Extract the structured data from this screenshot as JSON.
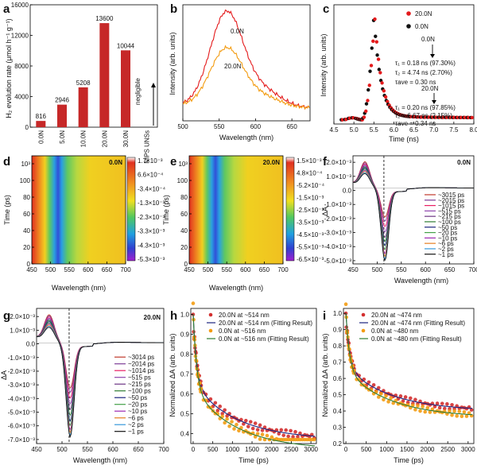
{
  "chart_data": [
    {
      "panel": "a",
      "type": "bar",
      "ylabel": "H₂ evolution rate (μmol h⁻¹ g⁻¹)",
      "categories": [
        "0.0N",
        "5.0N",
        "10.0N",
        "20.0N",
        "30.0N",
        "NIPS UNSs"
      ],
      "values": [
        816,
        2946,
        5208,
        13600,
        10044,
        0
      ],
      "value_labels": [
        "816",
        "2946",
        "5208",
        "13600",
        "10044",
        ""
      ],
      "annotation": "negligible",
      "yticks": [
        "0",
        "4000",
        "8000",
        "12000",
        "16000"
      ],
      "ylim": [
        0,
        16000
      ]
    },
    {
      "panel": "b",
      "type": "line",
      "xlabel": "Wavelength (nm)",
      "ylabel": "Intensity (arb. units)",
      "xticks": [
        "500",
        "550",
        "600",
        "650"
      ],
      "xlim": [
        500,
        675
      ],
      "series": [
        {
          "name": "0.0N",
          "color": "#e41a1c",
          "peak": 1.0
        },
        {
          "name": "20.0N",
          "color": "#f39c12",
          "peak": 0.62
        }
      ]
    },
    {
      "panel": "c",
      "type": "scatter",
      "xlabel": "Time (ns)",
      "ylabel": "Intensity (arb. units)",
      "xticks": [
        "4.5",
        "5.0",
        "5.5",
        "6.0",
        "6.5",
        "7.0",
        "7.5",
        "8.0"
      ],
      "xlim": [
        4.5,
        8.0
      ],
      "legend": [
        "20.0N",
        "0.0N"
      ],
      "legend_colors": [
        "#e41a1c",
        "#111111"
      ],
      "annot_a": {
        "title": "0.0N",
        "lines": [
          "τ₁ = 0.18 ns (97.30%)",
          "τ₂ = 4.74 ns (2.70%)",
          "τave = 0.30 ns"
        ]
      },
      "annot_b": {
        "title": "20.0N",
        "lines": [
          "τ₁ = 0.20 ns (97.85%)",
          "τ₂ = 6.67 ns (2.15%)",
          "τave = 0.34 ns"
        ]
      }
    },
    {
      "panel": "d",
      "type": "heatmap",
      "label": "0.0N",
      "xlabel": "Wavelength (nm)",
      "ylabel": "Time (ps)",
      "xticks": [
        "450",
        "500",
        "550",
        "600",
        "650",
        "700"
      ],
      "yticks": [
        "0",
        "20",
        "40",
        "60",
        "80",
        "100",
        "10³"
      ],
      "colorbar": [
        "1.7×10⁻³",
        "6.6×10⁻⁴",
        "-3.4×10⁻⁴",
        "-1.3×10⁻³",
        "-2.3×10⁻³",
        "-3.3×10⁻³",
        "-4.3×10⁻³",
        "-5.3×10⁻³"
      ]
    },
    {
      "panel": "e",
      "type": "heatmap",
      "label": "20.0N",
      "xlabel": "Wavelength (nm)",
      "ylabel": "Time (ps)",
      "xticks": [
        "450",
        "500",
        "550",
        "600",
        "650",
        "700"
      ],
      "yticks": [
        "0",
        "20",
        "40",
        "60",
        "80",
        "100",
        "10³"
      ],
      "colorbar": [
        "1.5×10⁻³",
        "4.8×10⁻⁴",
        "-5.2×10⁻⁴",
        "-1.5×10⁻³",
        "-2.5×10⁻³",
        "-3.5×10⁻³",
        "-4.5×10⁻³",
        "-5.5×10⁻³",
        "-6.5×10⁻³"
      ]
    },
    {
      "panel": "f",
      "type": "line",
      "label": "0.0N",
      "xlabel": "Wavelength (nm)",
      "ylabel": "ΔA",
      "xticks": [
        "450",
        "500",
        "550",
        "600",
        "650",
        "700"
      ],
      "yticks": [
        "2.0×10⁻³",
        "1.0×10⁻³",
        "0.0",
        "-1.0×10⁻³",
        "-2.0×10⁻³",
        "-3.0×10⁻³",
        "-4.0×10⁻³",
        "-5.0×10⁻³"
      ],
      "ylim": [
        -5.6,
        2.4
      ],
      "legend": [
        "~3015 ps",
        "~2015 ps",
        "~1015 ps",
        "~515 ps",
        "~215 ps",
        "~100 ps",
        "~50 ps",
        "~20 ps",
        "~10 ps",
        "~6 ps",
        "~2 ps",
        "~1 ps"
      ],
      "depths": [
        -2.0,
        -2.3,
        -2.7,
        -3.1,
        -3.5,
        -3.8,
        -4.1,
        -4.4,
        -4.7,
        -4.9,
        -5.1,
        -5.2
      ]
    },
    {
      "panel": "g",
      "type": "line",
      "label": "20.0N",
      "xlabel": "Wavelength (nm)",
      "ylabel": "ΔA",
      "xticks": [
        "450",
        "500",
        "550",
        "600",
        "650",
        "700"
      ],
      "yticks": [
        "2.0×10⁻³",
        "1.0×10⁻³",
        "0.0",
        "-1.0×10⁻³",
        "-2.0×10⁻³",
        "-3.0×10⁻³",
        "-4.0×10⁻³",
        "-5.0×10⁻³",
        "-6.0×10⁻³",
        "-7.0×10⁻³"
      ],
      "ylim": [
        -7.0,
        2.4
      ],
      "legend": [
        "~3014 ps",
        "~2014 ps",
        "~1014 ps",
        "~515 ps",
        "~215 ps",
        "~100 ps",
        "~50 ps",
        "~20 ps",
        "~10 ps",
        "~6 ps",
        "~2 ps",
        "~1 ps"
      ],
      "depths": [
        -3.0,
        -3.3,
        -3.7,
        -4.1,
        -4.5,
        -4.9,
        -5.3,
        -5.6,
        -5.9,
        -6.1,
        -6.3,
        -6.4
      ]
    },
    {
      "panel": "h",
      "type": "scatter",
      "xlabel": "Time (ps)",
      "ylabel": "Normalized ΔA (arb. units)",
      "xticks": [
        "0",
        "500",
        "1000",
        "1500",
        "2000",
        "2500",
        "3000"
      ],
      "yticks": [
        "0.4",
        "0.5",
        "0.6",
        "0.7",
        "0.8",
        "0.9",
        "1.0"
      ],
      "ylim": [
        0.35,
        1.03
      ],
      "legend": [
        "20.0N at ~514 nm",
        "20.0N at ~514 nm (Fitting Result)",
        "0.0N at ~516 nm",
        "0.0N at ~516 nm (Fitting Result)"
      ],
      "end_values": [
        0.37,
        0.32
      ]
    },
    {
      "panel": "i",
      "type": "scatter",
      "xlabel": "Time (ps)",
      "ylabel": "Normalized ΔA (arb. units)",
      "xticks": [
        "0",
        "500",
        "1000",
        "1500",
        "2000",
        "2500",
        "3000"
      ],
      "yticks": [
        "0.2",
        "0.3",
        "0.4",
        "0.5",
        "0.6",
        "0.7",
        "0.8",
        "0.9",
        "1.0"
      ],
      "ylim": [
        0.2,
        1.03
      ],
      "legend": [
        "20.0N at ~474 nm",
        "20.0N at ~474 nm (Fitting Result)",
        "0.0N at ~480 nm",
        "0.0N at ~480 nm (Fitting Result)"
      ],
      "end_values": [
        0.4,
        0.36
      ]
    }
  ]
}
